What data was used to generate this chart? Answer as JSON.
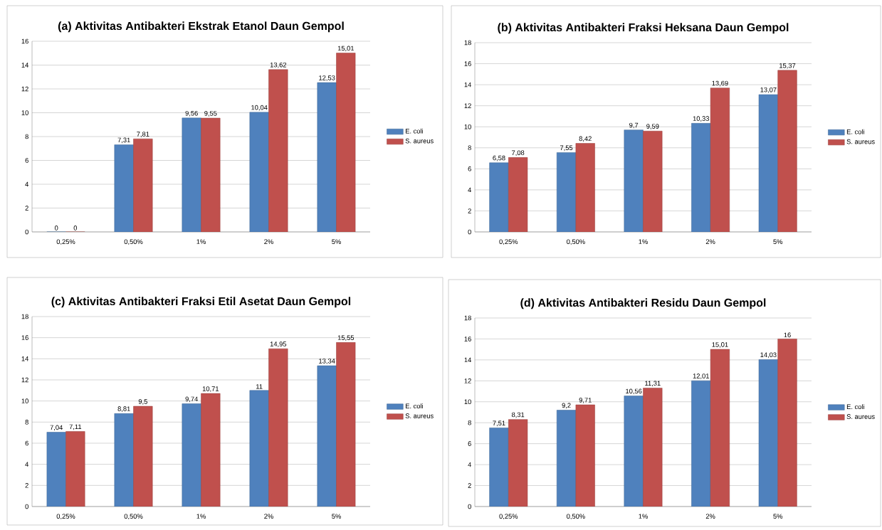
{
  "chart_data": [
    {
      "type": "bar",
      "title": "(a) Aktivitas Antibakteri Ekstrak Etanol Daun Gempol",
      "categories": [
        "0,25%",
        "0,50%",
        "1%",
        "2%",
        "5%"
      ],
      "series": [
        {
          "name": "E. coli",
          "color": "#4f81bd",
          "values": [
            0,
            7.31,
            9.56,
            10.04,
            12.53
          ],
          "value_labels": [
            "0",
            "7,31",
            "9,56",
            "10,04",
            "12,53"
          ]
        },
        {
          "name": "S. aureus",
          "color": "#c0504d",
          "values": [
            0,
            7.81,
            9.55,
            13.62,
            15.01
          ],
          "value_labels": [
            "0",
            "7,81",
            "9,55",
            "13,62",
            "15,01"
          ]
        }
      ],
      "ylim": [
        0,
        16
      ],
      "yticks": [
        0,
        2,
        4,
        6,
        8,
        10,
        12,
        14,
        16
      ],
      "grid": "y",
      "legend": "right"
    },
    {
      "type": "bar",
      "title": "(b) Aktivitas Antibakteri Fraksi Heksana Daun Gempol",
      "categories": [
        "0,25%",
        "0,50%",
        "1%",
        "2%",
        "5%"
      ],
      "series": [
        {
          "name": "E. coli",
          "color": "#4f81bd",
          "values": [
            6.58,
            7.55,
            9.7,
            10.33,
            13.07
          ],
          "value_labels": [
            "6,58",
            "7,55",
            "9,7",
            "10,33",
            "13,07"
          ]
        },
        {
          "name": "S. aureus",
          "color": "#c0504d",
          "values": [
            7.08,
            8.42,
            9.59,
            13.69,
            15.37
          ],
          "value_labels": [
            "7,08",
            "8,42",
            "9,59",
            "13,69",
            "15,37"
          ]
        }
      ],
      "ylim": [
        0,
        18
      ],
      "yticks": [
        0,
        2,
        4,
        6,
        8,
        10,
        12,
        14,
        16,
        18
      ],
      "grid": "y",
      "legend": "right"
    },
    {
      "type": "bar",
      "title": "(c) Aktivitas Antibakteri Fraksi Etil Asetat Daun Gempol",
      "categories": [
        "0,25%",
        "0,50%",
        "1%",
        "2%",
        "5%"
      ],
      "series": [
        {
          "name": "E. coli",
          "color": "#4f81bd",
          "values": [
            7.04,
            8.81,
            9.74,
            11,
            13.34
          ],
          "value_labels": [
            "7,04",
            "8,81",
            "9,74",
            "11",
            "13,34"
          ]
        },
        {
          "name": "S. aureus",
          "color": "#c0504d",
          "values": [
            7.11,
            9.5,
            10.71,
            14.95,
            15.55
          ],
          "value_labels": [
            "7,11",
            "9,5",
            "10,71",
            "14,95",
            "15,55"
          ]
        }
      ],
      "ylim": [
        0,
        18
      ],
      "yticks": [
        0,
        2,
        4,
        6,
        8,
        10,
        12,
        14,
        16,
        18
      ],
      "grid": "y",
      "legend": "right"
    },
    {
      "type": "bar",
      "title": "(d) Aktivitas Antibakteri Residu Daun Gempol",
      "categories": [
        "0,25%",
        "0,50%",
        "1%",
        "2%",
        "5%"
      ],
      "series": [
        {
          "name": "E. coli",
          "color": "#4f81bd",
          "values": [
            7.51,
            9.2,
            10.56,
            12.01,
            14.03
          ],
          "value_labels": [
            "7,51",
            "9,2",
            "10,56",
            "12,01",
            "14,03"
          ]
        },
        {
          "name": "S. aureus",
          "color": "#c0504d",
          "values": [
            8.31,
            9.71,
            11.31,
            15.01,
            16
          ],
          "value_labels": [
            "8,31",
            "9,71",
            "11,31",
            "15,01",
            "16"
          ]
        }
      ],
      "ylim": [
        0,
        18
      ],
      "yticks": [
        0,
        2,
        4,
        6,
        8,
        10,
        12,
        14,
        16,
        18
      ],
      "grid": "y",
      "legend": "right"
    }
  ]
}
